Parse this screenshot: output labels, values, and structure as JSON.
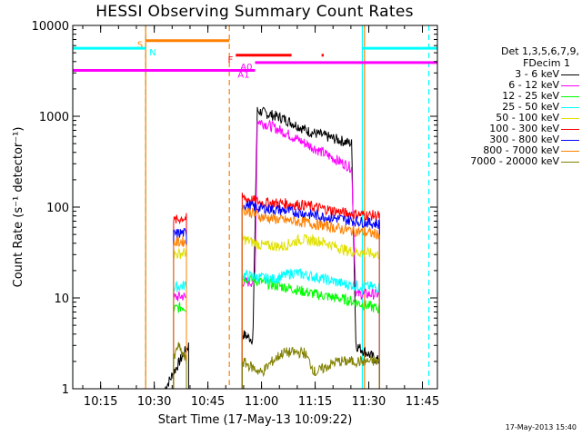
{
  "chart_data": {
    "type": "line",
    "title": "HESSI Observing Summary Count Rates",
    "xlabel": "Start Time (17-May-13 10:09:22)",
    "ylabel": "Count Rate (s⁻¹ detector⁻¹)",
    "yscale": "log",
    "ylim": [
      1,
      10000
    ],
    "xlim_minutes": [
      10.12,
      11.82
    ],
    "x_ticks": [
      "10:15",
      "10:30",
      "10:45",
      "11:00",
      "11:15",
      "11:30",
      "11:45"
    ],
    "y_ticks": [
      "1",
      "10",
      "100",
      "1000",
      "10000"
    ],
    "legend_header": [
      "Det 1,3,5,6,7,9,",
      "FDecim 1"
    ],
    "series": [
      {
        "name": "3 - 6 keV",
        "color": "#000000",
        "segments": [
          [
            [
              10.55,
              1
            ],
            [
              10.64,
              2.5
            ],
            [
              10.66,
              3
            ]
          ],
          [
            [
              10.91,
              4
            ],
            [
              10.96,
              3.5
            ],
            [
              10.98,
              1150
            ],
            [
              11.1,
              950
            ],
            [
              11.22,
              680
            ],
            [
              11.42,
              500
            ],
            [
              11.44,
              3
            ],
            [
              11.55,
              2
            ]
          ]
        ]
      },
      {
        "name": "6 - 12 keV",
        "color": "#ff00ff",
        "segments": [
          [
            [
              10.59,
              10
            ],
            [
              10.63,
              10.5
            ],
            [
              10.65,
              10
            ]
          ],
          [
            [
              10.91,
              15
            ],
            [
              10.97,
              15
            ],
            [
              10.98,
              900
            ],
            [
              11.1,
              680
            ],
            [
              11.22,
              480
            ],
            [
              11.42,
              270
            ],
            [
              11.44,
              11
            ],
            [
              11.55,
              11
            ]
          ]
        ]
      },
      {
        "name": "12 - 25 keV",
        "color": "#00ff00",
        "segments": [
          [
            [
              10.59,
              7.5
            ],
            [
              10.63,
              8
            ],
            [
              10.65,
              7.8
            ]
          ],
          [
            [
              10.91,
              17
            ],
            [
              11.0,
              15
            ],
            [
              11.05,
              14
            ],
            [
              11.12,
              13
            ],
            [
              11.25,
              11
            ],
            [
              11.4,
              9.5
            ],
            [
              11.55,
              7.5
            ]
          ]
        ]
      },
      {
        "name": "25 - 50 keV",
        "color": "#00ffff",
        "segments": [
          [
            [
              10.59,
              13
            ],
            [
              10.63,
              13.5
            ],
            [
              10.65,
              14
            ]
          ],
          [
            [
              10.91,
              18
            ],
            [
              11.05,
              16
            ],
            [
              11.15,
              19
            ],
            [
              11.25,
              17
            ],
            [
              11.4,
              14
            ],
            [
              11.55,
              13
            ]
          ]
        ]
      },
      {
        "name": "50 - 100 keV",
        "color": "#e0e000",
        "segments": [
          [
            [
              10.59,
              30
            ],
            [
              10.63,
              31
            ],
            [
              10.65,
              32
            ]
          ],
          [
            [
              10.91,
              45
            ],
            [
              11.0,
              38
            ],
            [
              11.1,
              37
            ],
            [
              11.18,
              44
            ],
            [
              11.28,
              42
            ],
            [
              11.4,
              33
            ],
            [
              11.55,
              30
            ]
          ]
        ]
      },
      {
        "name": "100 - 300 keV",
        "color": "#ff0000",
        "segments": [
          [
            [
              10.59,
              70
            ],
            [
              10.63,
              76
            ],
            [
              10.65,
              75
            ]
          ],
          [
            [
              10.91,
              128
            ],
            [
              11.0,
              112
            ],
            [
              11.1,
              110
            ],
            [
              11.2,
              105
            ],
            [
              11.3,
              95
            ],
            [
              11.4,
              85
            ],
            [
              11.55,
              80
            ]
          ]
        ]
      },
      {
        "name": "300 - 800 keV",
        "color": "#0000ff",
        "segments": [
          [
            [
              10.59,
              50
            ],
            [
              10.63,
              52
            ],
            [
              10.65,
              51
            ]
          ],
          [
            [
              10.91,
              108
            ],
            [
              11.0,
              97
            ],
            [
              11.1,
              92
            ],
            [
              11.2,
              85
            ],
            [
              11.3,
              78
            ],
            [
              11.4,
              72
            ],
            [
              11.55,
              65
            ]
          ]
        ]
      },
      {
        "name": "800 - 7000 keV",
        "color": "#ff8000",
        "segments": [
          [
            [
              10.59,
              40
            ],
            [
              10.63,
              42
            ],
            [
              10.65,
              41
            ]
          ],
          [
            [
              10.91,
              95
            ],
            [
              11.0,
              78
            ],
            [
              11.1,
              72
            ],
            [
              11.2,
              68
            ],
            [
              11.3,
              62
            ],
            [
              11.4,
              56
            ],
            [
              11.55,
              50
            ]
          ]
        ]
      },
      {
        "name": "7000 - 20000 keV",
        "color": "#808000",
        "segments": [
          [
            [
              10.59,
              2
            ],
            [
              10.61,
              3
            ],
            [
              10.65,
              2
            ]
          ],
          [
            [
              10.91,
              2
            ],
            [
              11.0,
              1.5
            ],
            [
              11.05,
              2
            ],
            [
              11.1,
              2.5
            ],
            [
              11.2,
              2.5
            ],
            [
              11.25,
              1.5
            ],
            [
              11.35,
              2
            ],
            [
              11.55,
              2
            ]
          ]
        ]
      }
    ],
    "annotations": [
      {
        "label": "S",
        "color": "#ff8000",
        "bars": [
          [
            10.46,
            10.85
          ]
        ],
        "level": 6800
      },
      {
        "label": "N",
        "color": "#00ffff",
        "bars": [
          [
            10.12,
            10.46
          ],
          [
            11.47,
            11.82
          ]
        ],
        "level": 5600
      },
      {
        "label": "F",
        "color": "#ff0000",
        "bars": [
          [
            10.88,
            11.14
          ],
          [
            11.28,
            11.29
          ]
        ],
        "level": 4700
      },
      {
        "label": "A0",
        "color": "#ff00ff",
        "bars": [
          [
            10.97,
            11.82
          ]
        ],
        "level": 3900
      },
      {
        "label": "A1",
        "color": "#ff00ff",
        "bars": [
          [
            10.12,
            10.97
          ]
        ],
        "level": 3200
      }
    ],
    "event_lines": [
      {
        "color": "#00ffff",
        "style": "dashed",
        "x": [
          10.46,
          11.78
        ]
      },
      {
        "color": "#00ffff",
        "style": "solid",
        "x": [
          10.12,
          11.47
        ]
      },
      {
        "color": "#ff8000",
        "style": "solid",
        "x": [
          10.46,
          11.48
        ]
      },
      {
        "color": "#ff8000",
        "style": "dashed",
        "x": [
          10.85
        ]
      }
    ],
    "grid": false
  },
  "footer_stamp": "17-May-2013 15:40"
}
